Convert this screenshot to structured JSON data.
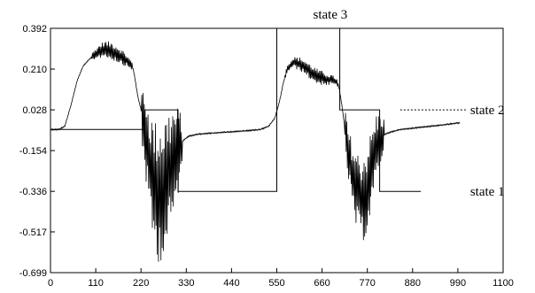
{
  "chart_data": {
    "type": "line",
    "title": "",
    "xlabel": "",
    "ylabel": "",
    "xlim": [
      0,
      1100
    ],
    "ylim": [
      -0.699,
      0.392
    ],
    "grid": false,
    "x_ticks": [
      0,
      110,
      220,
      330,
      440,
      550,
      660,
      770,
      880,
      990,
      1100
    ],
    "x_tick_labels": [
      "0",
      "110",
      "220",
      "330",
      "440",
      "550",
      "660",
      "770",
      "880",
      "990",
      "1100"
    ],
    "y_ticks": [
      0.392,
      0.21,
      0.028,
      -0.154,
      -0.336,
      -0.517,
      -0.699
    ],
    "y_tick_labels": [
      "0.392",
      "0.210",
      "0.028",
      "-0.154",
      "-0.336",
      "-0.517",
      "-0.699"
    ],
    "series": [
      {
        "style": "oscillating-signal",
        "anchors": [
          [
            0,
            -0.06
          ],
          [
            20,
            -0.06
          ],
          [
            35,
            -0.045
          ],
          [
            50,
            0.05
          ],
          [
            65,
            0.16
          ],
          [
            80,
            0.225
          ],
          [
            95,
            0.255
          ],
          [
            110,
            0.28
          ],
          [
            130,
            0.3
          ],
          [
            150,
            0.29
          ],
          [
            170,
            0.27
          ],
          [
            190,
            0.24
          ],
          [
            200,
            0.22
          ],
          [
            205,
            0.17
          ],
          [
            212,
            0.09
          ],
          [
            220,
            0.03
          ],
          [
            226,
            -0.04
          ],
          [
            232,
            -0.1
          ],
          [
            240,
            -0.2
          ],
          [
            250,
            -0.3
          ],
          [
            262,
            -0.34
          ],
          [
            275,
            -0.32
          ],
          [
            288,
            -0.26
          ],
          [
            300,
            -0.2
          ],
          [
            312,
            -0.15
          ],
          [
            322,
            -0.11
          ],
          [
            335,
            -0.09
          ],
          [
            360,
            -0.08
          ],
          [
            400,
            -0.075
          ],
          [
            440,
            -0.07
          ],
          [
            480,
            -0.065
          ],
          [
            510,
            -0.06
          ],
          [
            530,
            -0.045
          ],
          [
            545,
            -0.01
          ],
          [
            556,
            0.06
          ],
          [
            566,
            0.15
          ],
          [
            576,
            0.215
          ],
          [
            590,
            0.24
          ],
          [
            610,
            0.23
          ],
          [
            630,
            0.2
          ],
          [
            650,
            0.175
          ],
          [
            670,
            0.165
          ],
          [
            685,
            0.16
          ],
          [
            695,
            0.155
          ],
          [
            702,
            0.12
          ],
          [
            708,
            0.05
          ],
          [
            713,
            -0.02
          ],
          [
            719,
            -0.1
          ],
          [
            726,
            -0.2
          ],
          [
            738,
            -0.3
          ],
          [
            752,
            -0.37
          ],
          [
            765,
            -0.35
          ],
          [
            778,
            -0.26
          ],
          [
            792,
            -0.14
          ],
          [
            805,
            -0.09
          ],
          [
            820,
            -0.075
          ],
          [
            850,
            -0.06
          ],
          [
            900,
            -0.05
          ],
          [
            950,
            -0.04
          ],
          [
            995,
            -0.03
          ]
        ],
        "noise_bands": [
          {
            "from": 100,
            "to": 200,
            "amplitude": 0.04
          },
          {
            "from": 222,
            "to": 320,
            "amplitude": 0.32
          },
          {
            "from": 570,
            "to": 700,
            "amplitude": 0.035
          },
          {
            "from": 715,
            "to": 810,
            "amplitude": 0.2
          }
        ]
      },
      {
        "style": "state-trace",
        "points": [
          [
            0,
            -0.06
          ],
          [
            230,
            -0.06
          ],
          [
            230,
            0.028
          ],
          [
            310,
            0.028
          ],
          [
            310,
            -0.336
          ],
          [
            550,
            -0.336
          ],
          [
            550,
            0.392
          ],
          [
            703,
            0.392
          ],
          [
            703,
            0.028
          ],
          [
            800,
            0.028
          ],
          [
            800,
            -0.336
          ],
          [
            900,
            -0.336
          ]
        ]
      }
    ],
    "annotations": [
      {
        "text": "state 3",
        "x": 680,
        "y": 0.44
      },
      {
        "text": "state 2",
        "x": 1020,
        "y": 0.028
      },
      {
        "text": "state 1",
        "x": 1020,
        "y": -0.336
      }
    ],
    "dashed_line": {
      "from": 850,
      "to": 1010,
      "y": 0.028
    }
  }
}
